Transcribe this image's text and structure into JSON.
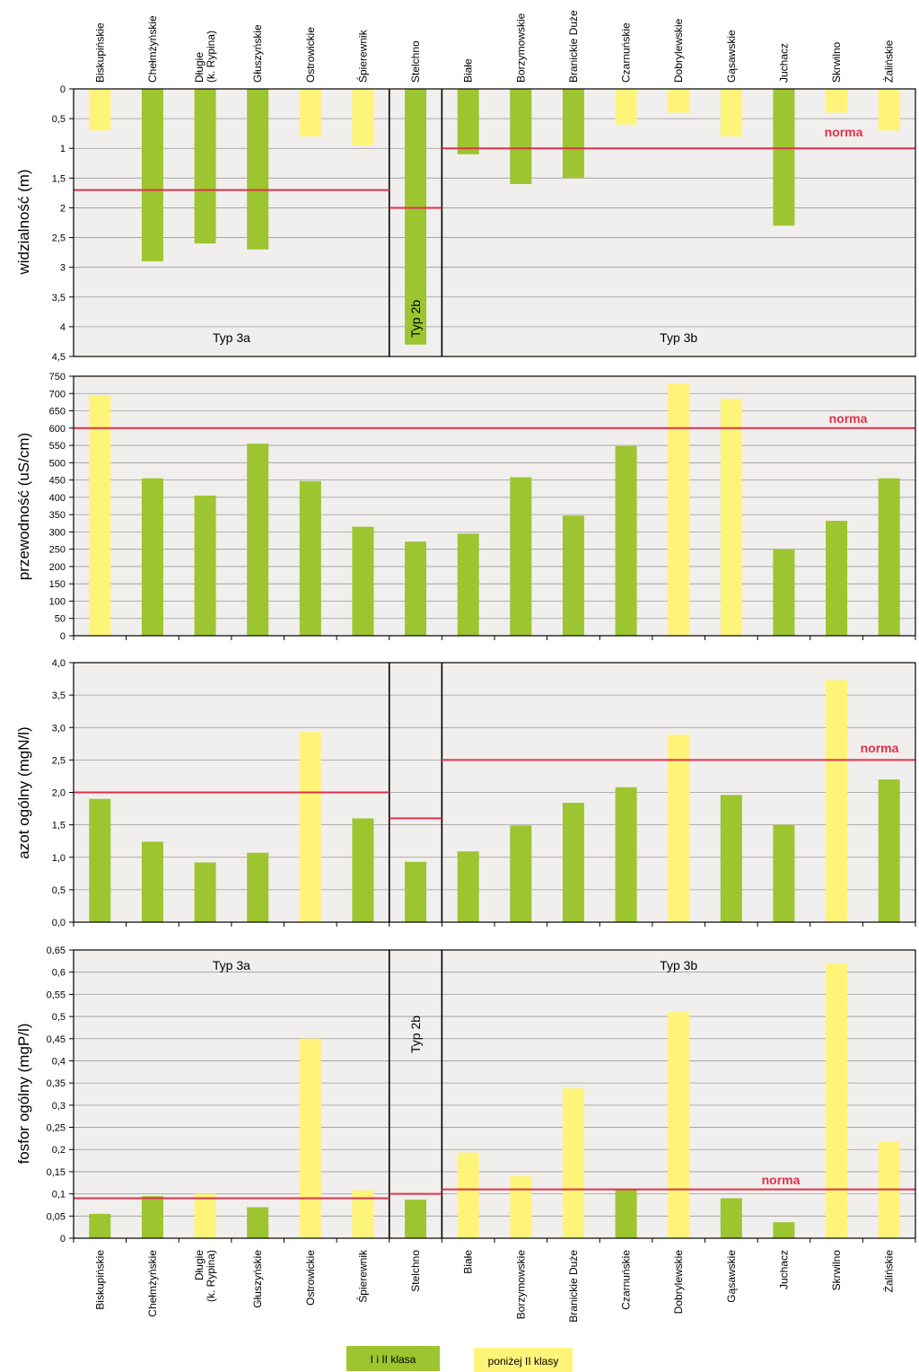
{
  "colors": {
    "green": "#9cc530",
    "yellow": "#fff47a",
    "norm_line": "#e0304a",
    "plot_bg": "#f1efed",
    "grid": "#9a9a9a"
  },
  "lakes": [
    "Biskupińskie",
    "Chełmżyńskie",
    "Długie (k. Rypina)",
    "Głuszyńskie",
    "Ostrowickie",
    "Śpierewnik",
    "Stelchno",
    "Białe",
    "Borzymowskie",
    "Branickie Duże",
    "Czarnuńskie",
    "Dobrylewskie",
    "Gąsawskie",
    "Juchacz",
    "Skrwilno",
    "Żalińskie"
  ],
  "legend": [
    {
      "label": "I i II klasa",
      "color": "#9cc530"
    },
    {
      "label": "poniżej II klasy",
      "color": "#fff47a"
    }
  ],
  "chart_data": [
    {
      "type": "bar",
      "ylabel": "widzialność (m)",
      "inverted_y": true,
      "ylim": [
        0,
        4.5
      ],
      "yticks": [
        "0",
        "0,5",
        "1",
        "1,5",
        "2",
        "2,5",
        "3",
        "3,5",
        "4",
        "4,5"
      ],
      "categories": [
        "Biskupińskie",
        "Chełmżyńskie",
        "Długie (k. Rypina)",
        "Głuszyńskie",
        "Ostrowickie",
        "Śpierewnik",
        "Stelchno",
        "Białe",
        "Borzymowskie",
        "Branickie Duże",
        "Czarnuńskie",
        "Dobrylewskie",
        "Gąsawskie",
        "Juchacz",
        "Skrwilno",
        "Żalińskie"
      ],
      "values": [
        0.7,
        2.9,
        2.6,
        2.7,
        0.8,
        0.95,
        4.3,
        1.1,
        1.6,
        1.5,
        0.6,
        0.4,
        0.8,
        2.3,
        0.4,
        0.7
      ],
      "classes": [
        "yellow",
        "green",
        "green",
        "green",
        "yellow",
        "yellow",
        "green",
        "green",
        "green",
        "green",
        "yellow",
        "yellow",
        "yellow",
        "green",
        "yellow",
        "yellow"
      ],
      "norms": [
        {
          "from": 0,
          "to": 5,
          "value": 1.7
        },
        {
          "from": 6,
          "to": 6,
          "value": 2.0
        },
        {
          "from": 7,
          "to": 15,
          "value": 1.0
        }
      ],
      "norm_label": "norma",
      "separators_after": [
        5,
        6
      ],
      "segment_labels": [
        {
          "text": "Typ 3a",
          "from": 0,
          "to": 5
        },
        {
          "text": "Typ 2b",
          "from": 6,
          "to": 6
        },
        {
          "text": "Typ 3b",
          "from": 7,
          "to": 15
        }
      ]
    },
    {
      "type": "bar",
      "ylabel": "przewodność (uS/cm)",
      "ylim": [
        0,
        750
      ],
      "yticks": [
        "0",
        "50",
        "100",
        "150",
        "200",
        "250",
        "300",
        "350",
        "400",
        "450",
        "500",
        "550",
        "600",
        "650",
        "700",
        "750"
      ],
      "categories": [
        "Biskupińskie",
        "Chełmżyńskie",
        "Długie (k. Rypina)",
        "Głuszyńskie",
        "Ostrowickie",
        "Śpierewnik",
        "Stelchno",
        "Białe",
        "Borzymowskie",
        "Branickie Duże",
        "Czarnuńskie",
        "Dobrylewskie",
        "Gąsawskie",
        "Juchacz",
        "Skrwilno",
        "Żalińskie"
      ],
      "values": [
        695,
        455,
        405,
        555,
        447,
        315,
        272,
        295,
        458,
        347,
        548,
        728,
        685,
        250,
        332,
        455
      ],
      "classes": [
        "yellow",
        "green",
        "green",
        "green",
        "green",
        "green",
        "green",
        "green",
        "green",
        "green",
        "green",
        "yellow",
        "yellow",
        "green",
        "green",
        "green"
      ],
      "norms": [
        {
          "from": 0,
          "to": 15,
          "value": 600
        }
      ],
      "norm_label": "norma",
      "separators_after": [],
      "segment_labels": []
    },
    {
      "type": "bar",
      "ylabel": "azot ogólny (mgN/l)",
      "ylim": [
        0,
        4.0
      ],
      "yticks": [
        "0,0",
        "0,5",
        "1,0",
        "1,5",
        "2,0",
        "2,5",
        "3,0",
        "3,5",
        "4,0"
      ],
      "categories": [
        "Biskupińskie",
        "Chełmżyńskie",
        "Długie (k. Rypina)",
        "Głuszyńskie",
        "Ostrowickie",
        "Śpierewnik",
        "Stelchno",
        "Białe",
        "Borzymowskie",
        "Branickie Duże",
        "Czarnuńskie",
        "Dobrylewskie",
        "Gąsawskie",
        "Juchacz",
        "Skrwilno",
        "Żalińskie"
      ],
      "values": [
        1.9,
        1.24,
        0.92,
        1.07,
        2.93,
        1.6,
        0.93,
        1.09,
        1.49,
        1.84,
        2.08,
        2.89,
        1.96,
        1.5,
        3.73,
        2.2
      ],
      "classes": [
        "green",
        "green",
        "green",
        "green",
        "yellow",
        "green",
        "green",
        "green",
        "green",
        "green",
        "green",
        "yellow",
        "green",
        "green",
        "yellow",
        "green"
      ],
      "norms": [
        {
          "from": 0,
          "to": 5,
          "value": 2.0
        },
        {
          "from": 6,
          "to": 6,
          "value": 1.6
        },
        {
          "from": 7,
          "to": 15,
          "value": 2.5
        }
      ],
      "norm_label": "norma",
      "separators_after": [
        5,
        6
      ],
      "segment_labels": []
    },
    {
      "type": "bar",
      "ylabel": "fosfor ogólny (mgP/l)",
      "ylim": [
        0,
        0.65
      ],
      "yticks": [
        "0",
        "0,05",
        "0,1",
        "0,15",
        "0,2",
        "0,25",
        "0,3",
        "0,35",
        "0,4",
        "0,45",
        "0,5",
        "0,55",
        "0,6",
        "0,65"
      ],
      "categories": [
        "Biskupińskie",
        "Chełmżyńskie",
        "Długie (k. Rypina)",
        "Głuszyńskie",
        "Ostrowickie",
        "Śpierewnik",
        "Stelchno",
        "Białe",
        "Borzymowskie",
        "Branickie Duże",
        "Czarnuńskie",
        "Dobrylewskie",
        "Gąsawskie",
        "Juchacz",
        "Skrwilno",
        "Żalińskie"
      ],
      "values": [
        0.055,
        0.095,
        0.1,
        0.07,
        0.45,
        0.108,
        0.087,
        0.193,
        0.14,
        0.338,
        0.11,
        0.51,
        0.09,
        0.036,
        0.62,
        0.217
      ],
      "classes": [
        "green",
        "green",
        "yellow",
        "green",
        "yellow",
        "yellow",
        "green",
        "yellow",
        "yellow",
        "yellow",
        "green",
        "yellow",
        "green",
        "green",
        "yellow",
        "yellow"
      ],
      "norms": [
        {
          "from": 0,
          "to": 5,
          "value": 0.09
        },
        {
          "from": 6,
          "to": 6,
          "value": 0.1
        },
        {
          "from": 7,
          "to": 15,
          "value": 0.11
        }
      ],
      "norm_label": "norma",
      "separators_after": [
        5,
        6
      ],
      "segment_labels": [
        {
          "text": "Typ 3a",
          "from": 0,
          "to": 5
        },
        {
          "text": "Typ 2b",
          "from": 6,
          "to": 6
        },
        {
          "text": "Typ 3b",
          "from": 7,
          "to": 15
        }
      ]
    }
  ]
}
